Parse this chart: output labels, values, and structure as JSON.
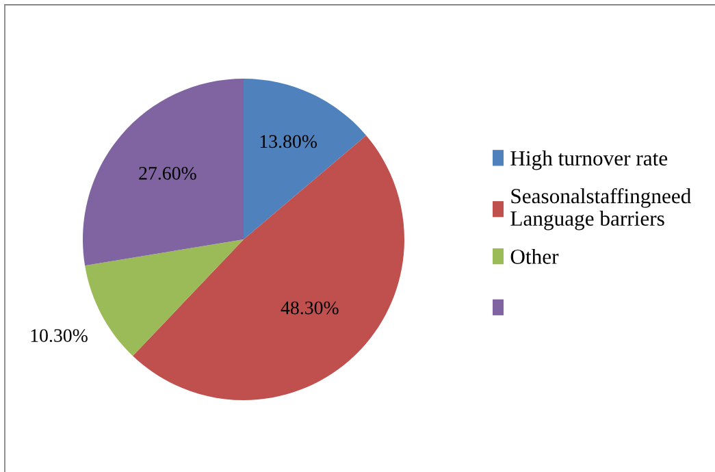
{
  "chart_data": {
    "type": "pie",
    "categories": [
      "High turnover rate",
      "Seasonalstaffingneed\nLanguage barriers",
      "Other",
      null
    ],
    "values": [
      13.8,
      48.3,
      10.3,
      27.6
    ],
    "colors": [
      "#4f81bd",
      "#c0504d",
      "#9bbb59",
      "#8064a2"
    ],
    "value_labels": [
      "13.80%",
      "48.30%",
      "10.30%",
      "27.60%"
    ],
    "legend": "right"
  }
}
